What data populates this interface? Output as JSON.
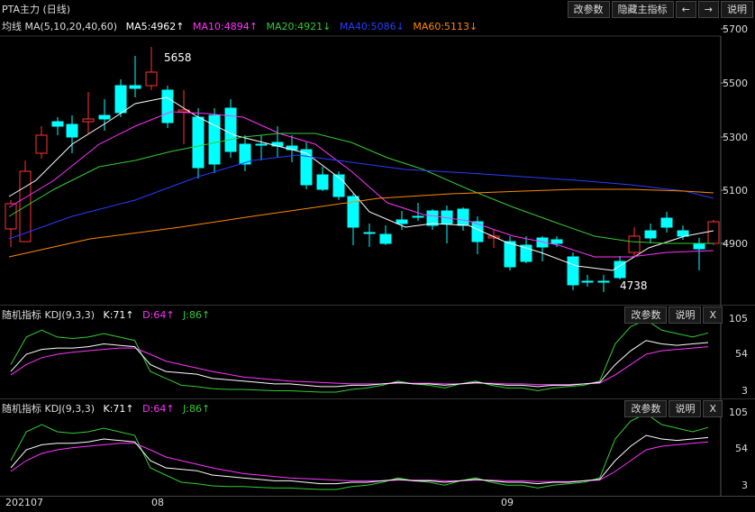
{
  "main": {
    "title": "PTA主力 (日线)",
    "ma_label": "均线 MA(5,10,20,40,60)",
    "ma_values": [
      {
        "text": "MA5:4962↑",
        "color": "#ffffff"
      },
      {
        "text": "MA10:4894↑",
        "color": "#ff33ff"
      },
      {
        "text": "MA20:4921↓",
        "color": "#33cc33"
      },
      {
        "text": "MA40:5086↓",
        "color": "#2a3cff"
      },
      {
        "text": "MA60:5113↓",
        "color": "#ff8800"
      }
    ],
    "buttons": [
      "改参数",
      "隐藏主指标",
      "←",
      "→",
      "说明"
    ],
    "yticks": [
      "5700",
      "5500",
      "5300",
      "5100",
      "4900"
    ],
    "high_label": "5658",
    "low_label": "4738"
  },
  "kdj1": {
    "title": "随机指标 KDJ(9,3,3)",
    "k": "K:71↑",
    "d": "D:64↑",
    "j": "J:86↑",
    "buttons": [
      "改参数",
      "说明",
      "X"
    ],
    "yticks": [
      "105",
      "54",
      "3"
    ]
  },
  "kdj2": {
    "title": "随机指标 KDJ(9,3,3)",
    "k": "K:71↑",
    "d": "D:64↑",
    "j": "J:86↑",
    "buttons": [
      "改参数",
      "说明",
      "X"
    ],
    "yticks": [
      "105",
      "54",
      "3"
    ]
  },
  "xaxis": [
    "202107",
    "08",
    "09"
  ],
  "colors": {
    "up": "#ff3333",
    "down": "#00ffff",
    "k": "#ffffff",
    "d": "#ff33ff",
    "j": "#33cc33"
  }
}
